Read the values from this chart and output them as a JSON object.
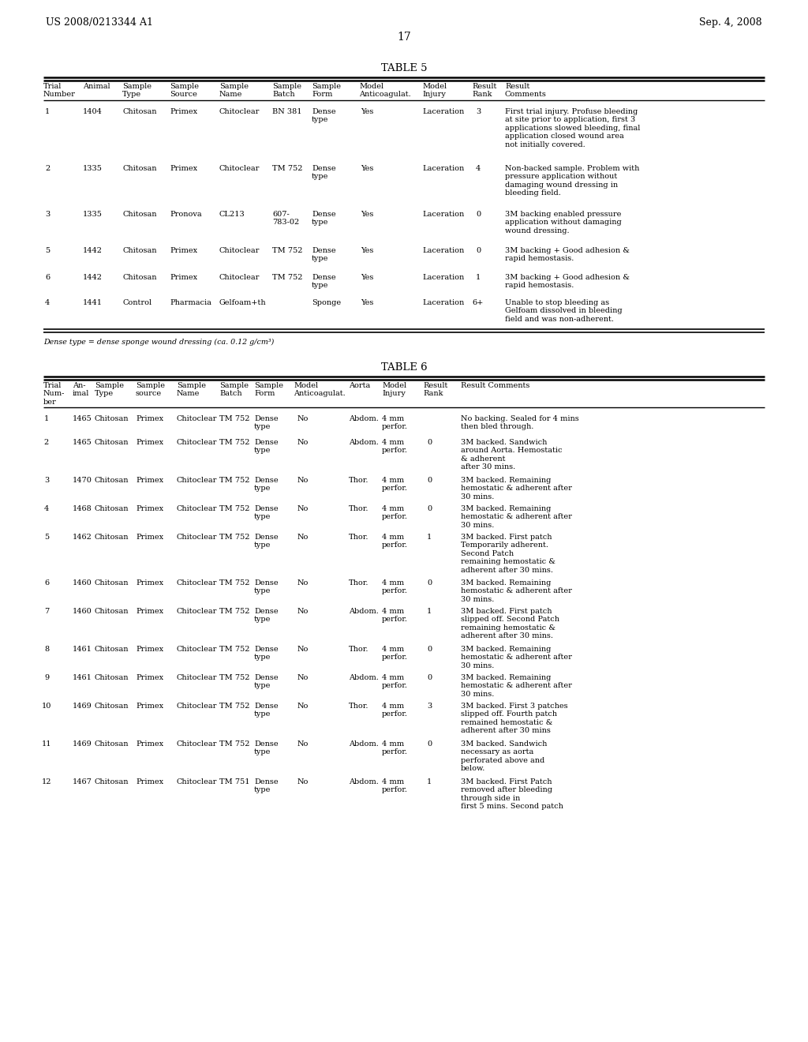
{
  "page_header_left": "US 2008/0213344 A1",
  "page_header_right": "Sep. 4, 2008",
  "page_number": "17",
  "bg_color": "#ffffff",
  "text_color": "#000000",
  "table5_title": "TABLE 5",
  "table5_footnote": "Dense type = dense sponge wound dressing (ca. 0.12 g/cm³)",
  "table5_rows": [
    [
      "1",
      "1404",
      "Chitosan",
      "Primex",
      "Chitoclear",
      "BN 381",
      "Dense\ntype",
      "Yes",
      "Laceration",
      "3",
      "First trial injury. Profuse bleeding\nat site prior to application, first 3\napplications slowed bleeding, final\napplication closed wound area\nnot initially covered."
    ],
    [
      "2",
      "1335",
      "Chitosan",
      "Primex",
      "Chitoclear",
      "TM 752",
      "Dense\ntype",
      "Yes",
      "Laceration",
      "4",
      "Non-backed sample. Problem with\npressure application without\ndamaging wound dressing in\nbleeding field."
    ],
    [
      "3",
      "1335",
      "Chitosan",
      "Pronova",
      "CL213",
      "607-\n783-02",
      "Dense\ntype",
      "Yes",
      "Laceration",
      "0",
      "3M backing enabled pressure\napplication without damaging\nwound dressing."
    ],
    [
      "5",
      "1442",
      "Chitosan",
      "Primex",
      "Chitoclear",
      "TM 752",
      "Dense\ntype",
      "Yes",
      "Laceration",
      "0",
      "3M backing + Good adhesion &\nrapid hemostasis."
    ],
    [
      "6",
      "1442",
      "Chitosan",
      "Primex",
      "Chitoclear",
      "TM 752",
      "Dense\ntype",
      "Yes",
      "Laceration",
      "1",
      "3M backing + Good adhesion &\nrapid hemostasis."
    ],
    [
      "4",
      "1441",
      "Control",
      "Pharmacia",
      "Gelfoam+th",
      "",
      "Sponge",
      "Yes",
      "Laceration",
      "6+",
      "Unable to stop bleeding as\nGelfoam dissolved in bleeding\nfield and was non-adherent."
    ]
  ],
  "table6_title": "TABLE 6",
  "table6_rows": [
    [
      "1",
      "1465",
      "Chitosan",
      "Primex",
      "Chitoclear",
      "TM 752",
      "Dense\ntype",
      "No",
      "Abdom.",
      "4 mm\nperfor.",
      "",
      "No backing. Sealed for 4 mins\nthen bled through."
    ],
    [
      "2",
      "1465",
      "Chitosan",
      "Primex",
      "Chitoclear",
      "TM 752",
      "Dense\ntype",
      "No",
      "Abdom.",
      "4 mm\nperfor.",
      "0",
      "3M backed. Sandwich\naround Aorta. Hemostatic\n& adherent\nafter 30 mins."
    ],
    [
      "3",
      "1470",
      "Chitosan",
      "Primex",
      "Chitoclear",
      "TM 752",
      "Dense\ntype",
      "No",
      "Thor.",
      "4 mm\nperfor.",
      "0",
      "3M backed. Remaining\nhemostatic & adherent after\n30 mins."
    ],
    [
      "4",
      "1468",
      "Chitosan",
      "Primex",
      "Chitoclear",
      "TM 752",
      "Dense\ntype",
      "No",
      "Thor.",
      "4 mm\nperfor.",
      "0",
      "3M backed. Remaining\nhemostatic & adherent after\n30 mins."
    ],
    [
      "5",
      "1462",
      "Chitosan",
      "Primex",
      "Chitoclear",
      "TM 752",
      "Dense\ntype",
      "No",
      "Thor.",
      "4 mm\nperfor.",
      "1",
      "3M backed. First patch\nTemporarily adherent.\nSecond Patch\nremaining hemostatic &\nadherent after 30 mins."
    ],
    [
      "6",
      "1460",
      "Chitosan",
      "Primex",
      "Chitoclear",
      "TM 752",
      "Dense\ntype",
      "No",
      "Thor.",
      "4 mm\nperfor.",
      "0",
      "3M backed. Remaining\nhemostatic & adherent after\n30 mins."
    ],
    [
      "7",
      "1460",
      "Chitosan",
      "Primex",
      "Chitoclear",
      "TM 752",
      "Dense\ntype",
      "No",
      "Abdom.",
      "4 mm\nperfor.",
      "1",
      "3M backed. First patch\nslipped off. Second Patch\nremaining hemostatic &\nadherent after 30 mins."
    ],
    [
      "8",
      "1461",
      "Chitosan",
      "Primex",
      "Chitoclear",
      "TM 752",
      "Dense\ntype",
      "No",
      "Thor.",
      "4 mm\nperfor.",
      "0",
      "3M backed. Remaining\nhemostatic & adherent after\n30 mins."
    ],
    [
      "9",
      "1461",
      "Chitosan",
      "Primex",
      "Chitoclear",
      "TM 752",
      "Dense\ntype",
      "No",
      "Abdom.",
      "4 mm\nperfor.",
      "0",
      "3M backed. Remaining\nhemostatic & adherent after\n30 mins."
    ],
    [
      "10",
      "1469",
      "Chitosan",
      "Primex",
      "Chitoclear",
      "TM 752",
      "Dense\ntype",
      "No",
      "Thor.",
      "4 mm\nperfor.",
      "3",
      "3M backed. First 3 patches\nslipped off. Fourth patch\nremained hemostatic &\nadherent after 30 mins"
    ],
    [
      "11",
      "1469",
      "Chitosan",
      "Primex",
      "Chitoclear",
      "TM 752",
      "Dense\ntype",
      "No",
      "Abdom.",
      "4 mm\nperfor.",
      "0",
      "3M backed. Sandwich\nnecessary as aorta\nperforated above and\nbelow."
    ],
    [
      "12",
      "1467",
      "Chitosan",
      "Primex",
      "Chitoclear",
      "TM 751",
      "Dense\ntype",
      "No",
      "Abdom.",
      "4 mm\nperfor.",
      "1",
      "3M backed. First Patch\nremoved after bleeding\nthrough side in\nfirst 5 mins. Second patch"
    ]
  ]
}
